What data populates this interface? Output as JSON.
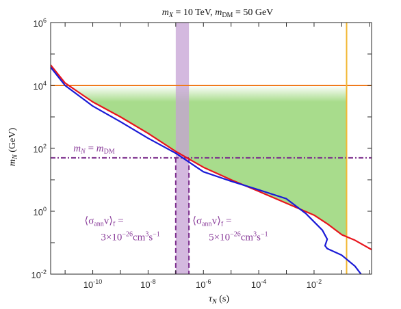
{
  "chart_data": {
    "type": "line",
    "title": "m_X = 10 TeV, m_DM = 50 GeV",
    "title_parts": {
      "a": "m",
      "a_sub": "X",
      "b": " = 10 TeV, ",
      "c": "m",
      "c_sub": "DM",
      "d": " = 50 GeV"
    },
    "xlabel": {
      "sym": "τ",
      "sub": "N",
      "unit": " (s)"
    },
    "ylabel": {
      "sym": "m",
      "sub": "N",
      "unit": " (GeV)"
    },
    "xscale": "log",
    "yscale": "log",
    "xlim": [
      3e-12,
      1.2
    ],
    "ylim": [
      0.01,
      1000000
    ],
    "x_ticks": [
      {
        "value": 1e-10,
        "base": "10",
        "exp": "-10"
      },
      {
        "value": 1e-08,
        "base": "10",
        "exp": "-8"
      },
      {
        "value": 1e-06,
        "base": "10",
        "exp": "-6"
      },
      {
        "value": 0.0001,
        "base": "10",
        "exp": "-4"
      },
      {
        "value": 0.01,
        "base": "10",
        "exp": "-2"
      }
    ],
    "y_ticks": [
      {
        "value": 0.01,
        "base": "10",
        "exp": "-2"
      },
      {
        "value": 1,
        "base": "10",
        "exp": "0"
      },
      {
        "value": 100,
        "base": "10",
        "exp": "2"
      },
      {
        "value": 10000,
        "base": "10",
        "exp": "4"
      },
      {
        "value": 1000000,
        "base": "10",
        "exp": "6"
      }
    ],
    "grid": false,
    "colors": {
      "red_line": "#e8141c",
      "blue_line": "#1a1ad6",
      "orange_line": "#f07a1c",
      "yellow_line": "#f2b733",
      "purple_line": "#7b2c8c",
      "purple_band": "#c6a2d4",
      "green_region": "#a8dc8c",
      "annotation": "#8a3d9a"
    },
    "series": [
      {
        "color_key": "red_line",
        "x": [
          3e-12,
          1e-11,
          1e-10,
          1e-09,
          1e-08,
          1e-07,
          1e-06,
          1e-05,
          0.0001,
          0.001,
          0.01,
          0.03,
          0.1,
          0.3,
          1.2
        ],
        "y": [
          45000,
          12000,
          3000,
          1000,
          300,
          80,
          25,
          10,
          4.3,
          1.8,
          0.75,
          0.4,
          0.18,
          0.12,
          0.06
        ]
      },
      {
        "color_key": "blue_line",
        "x": [
          3e-12,
          1e-11,
          1e-10,
          1e-09,
          1e-08,
          1e-07,
          1e-06,
          1e-05,
          0.0001,
          0.001,
          0.005,
          0.02,
          0.03,
          0.025,
          0.03,
          0.1,
          0.3,
          0.5
        ],
        "y": [
          38000,
          10000,
          2200,
          700,
          210,
          70,
          18,
          9,
          4.8,
          2.5,
          0.85,
          0.25,
          0.13,
          0.08,
          0.065,
          0.04,
          0.018,
          0.01
        ]
      }
    ],
    "horizontal_lines": [
      {
        "y": 10000,
        "color_key": "orange_line",
        "style": "solid"
      },
      {
        "y": 50,
        "color_key": "purple_line",
        "style": "dashdot"
      }
    ],
    "vertical_lines": [
      {
        "x": 0.15,
        "color_key": "yellow_line",
        "style": "solid"
      },
      {
        "x": 1e-07,
        "color_key": "purple_line",
        "style": "dashed",
        "y_range": [
          0.01,
          50
        ]
      },
      {
        "x": 3e-07,
        "color_key": "purple_line",
        "style": "dashed",
        "y_range": [
          0.01,
          50
        ]
      }
    ],
    "band": {
      "x": [
        1e-07,
        3e-07
      ],
      "color_key": "purple_band"
    },
    "region": {
      "color_key": "green_region",
      "x_max": 0.15,
      "y_top": 10000,
      "fade_from_y": 3000
    },
    "annotations": [
      {
        "id": "mn_eq",
        "x": 2e-11,
        "y": 80,
        "parts": {
          "a": "m",
          "a_sub": "N",
          "b": " = ",
          "c": "m",
          "c_sub": "DM"
        }
      },
      {
        "id": "sigma1",
        "x": 5e-11,
        "y": 0.4,
        "line1": {
          "l": "⟨σ",
          "l_sub": "ann",
          "m": "v⟩",
          "m_sub": "f",
          "r": " ="
        },
        "line2": {
          "a": "3×10",
          "a_sup": "−26",
          "b": "cm",
          "b_sup": "3",
          "c": "s",
          "c_sup": "−1"
        }
      },
      {
        "id": "sigma2",
        "x": 4e-07,
        "y": 0.4,
        "line1": {
          "l": "⟨σ",
          "l_sub": "ann",
          "m": "v⟩",
          "m_sub": "f",
          "r": " ="
        },
        "line2": {
          "a": "5×10",
          "a_sup": "−26",
          "b": "cm",
          "b_sup": "3",
          "c": "s",
          "c_sup": "−1"
        }
      }
    ]
  }
}
